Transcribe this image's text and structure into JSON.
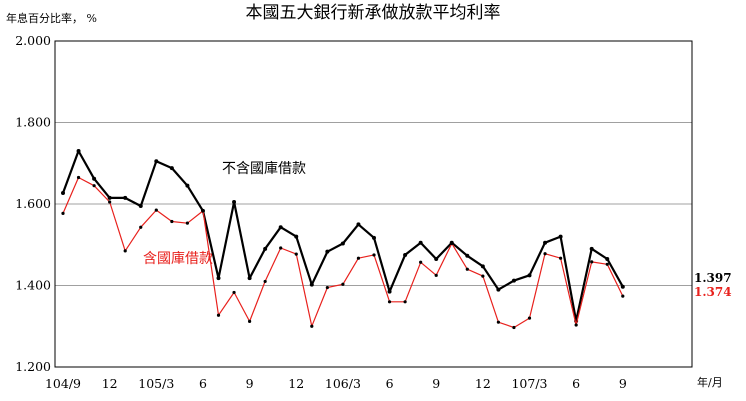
{
  "chart_data": {
    "type": "line",
    "title": "本國五大銀行新承做放款平均利率",
    "ylabel": "年息百分比率， %",
    "xlabel": "年/月",
    "ylim": [
      1.2,
      2.0
    ],
    "yticks": [
      "1.200",
      "1.400",
      "1.600",
      "1.800",
      "2.000"
    ],
    "grid": true,
    "xtick_labels": [
      {
        "index": 0,
        "label": "104/9"
      },
      {
        "index": 3,
        "label": "12"
      },
      {
        "index": 6,
        "label": "105/3"
      },
      {
        "index": 9,
        "label": "6"
      },
      {
        "index": 12,
        "label": "9"
      },
      {
        "index": 15,
        "label": "12"
      },
      {
        "index": 18,
        "label": "106/3"
      },
      {
        "index": 21,
        "label": "6"
      },
      {
        "index": 24,
        "label": "9"
      },
      {
        "index": 27,
        "label": "12"
      },
      {
        "index": 30,
        "label": "107/3"
      },
      {
        "index": 33,
        "label": "6"
      },
      {
        "index": 36,
        "label": "9"
      }
    ],
    "series": [
      {
        "name": "不含國庫借款",
        "color": "#000000",
        "end_label": "1.397",
        "values": [
          1.627,
          1.73,
          1.662,
          1.615,
          1.615,
          1.595,
          1.705,
          1.688,
          1.645,
          1.583,
          1.418,
          1.605,
          1.418,
          1.49,
          1.543,
          1.52,
          1.402,
          1.483,
          1.503,
          1.55,
          1.517,
          1.385,
          1.475,
          1.505,
          1.465,
          1.505,
          1.473,
          1.447,
          1.39,
          1.412,
          1.425,
          1.505,
          1.52,
          1.313,
          1.49,
          1.465,
          1.397
        ]
      },
      {
        "name": "含國庫借款",
        "color": "#e8211d",
        "end_label": "1.374",
        "values": [
          1.577,
          1.665,
          1.645,
          1.605,
          1.485,
          1.543,
          1.585,
          1.557,
          1.553,
          1.583,
          1.327,
          1.383,
          1.312,
          1.41,
          1.492,
          1.477,
          1.3,
          1.395,
          1.403,
          1.467,
          1.475,
          1.36,
          1.36,
          1.457,
          1.425,
          1.503,
          1.44,
          1.423,
          1.31,
          1.297,
          1.32,
          1.478,
          1.467,
          1.303,
          1.458,
          1.452,
          1.374
        ]
      }
    ]
  }
}
